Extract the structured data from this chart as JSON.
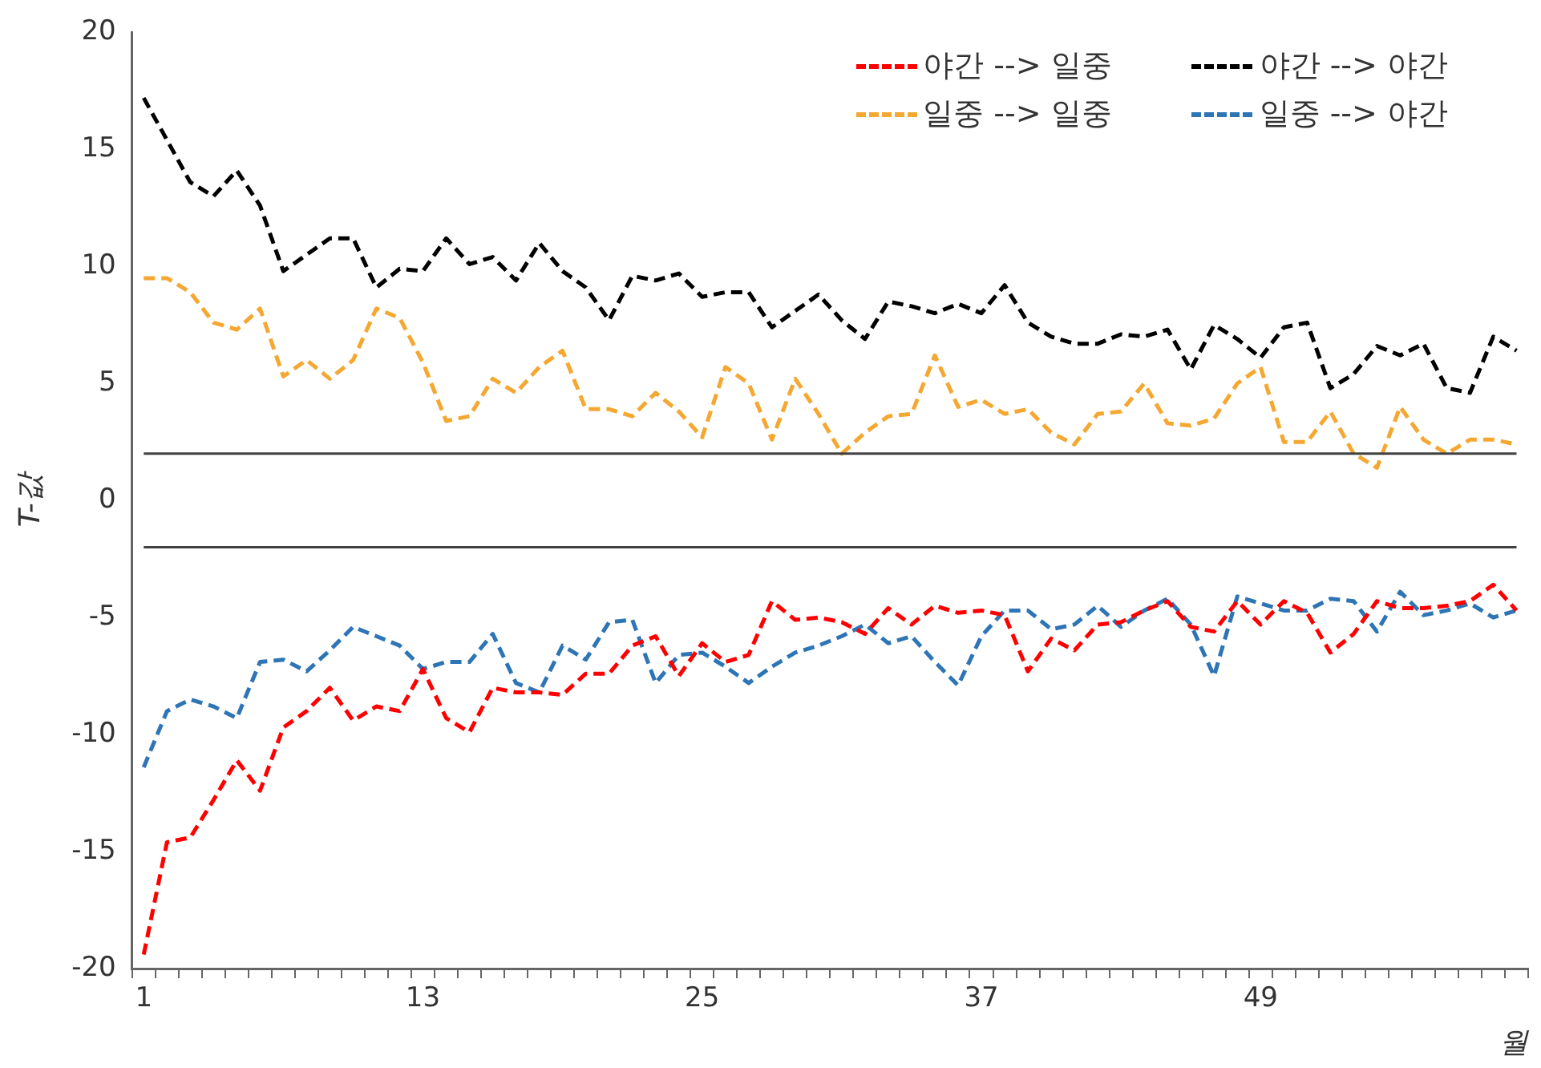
{
  "chart_data": {
    "type": "line",
    "xlabel": "월",
    "ylabel": "T-값",
    "categories": [
      "1",
      null,
      null,
      null,
      null,
      null,
      null,
      null,
      null,
      null,
      null,
      null,
      "13",
      null,
      null,
      null,
      null,
      null,
      null,
      null,
      null,
      null,
      null,
      null,
      "25",
      null,
      null,
      null,
      null,
      null,
      null,
      null,
      null,
      null,
      null,
      null,
      "37",
      null,
      null,
      null,
      null,
      null,
      null,
      null,
      null,
      null,
      null,
      null,
      "49",
      null,
      null,
      null,
      null,
      null,
      null,
      null,
      null,
      null,
      null,
      null
    ],
    "series": [
      {
        "name": "야간 --> 일중",
        "color": "#ff0000",
        "values": [
          -19.4,
          -14.6,
          -14.4,
          -12.8,
          -11.1,
          -12.4,
          -9.7,
          -9.0,
          -8.0,
          -9.4,
          -8.8,
          -9.0,
          -7.2,
          -9.3,
          -9.9,
          -8.0,
          -8.2,
          -8.2,
          -8.3,
          -7.4,
          -7.4,
          -6.2,
          -5.8,
          -7.5,
          -6.1,
          -6.9,
          -6.6,
          -4.3,
          -5.1,
          -5.0,
          -5.2,
          -5.7,
          -4.6,
          -5.3,
          -4.5,
          -4.8,
          -4.7,
          -4.9,
          -7.3,
          -5.9,
          -6.4,
          -5.3,
          -5.2,
          -4.7,
          -4.3,
          -5.4,
          -5.6,
          -4.3,
          -5.3,
          -4.3,
          -4.8,
          -6.5,
          -5.7,
          -4.3,
          -4.6,
          -4.6,
          -4.5,
          -4.3,
          -3.6,
          -4.7
        ]
      },
      {
        "name": "야간 --> 야간",
        "color": "#000000",
        "values": [
          17.2,
          15.4,
          13.6,
          13.0,
          14.1,
          12.6,
          9.8,
          10.5,
          11.2,
          11.2,
          9.1,
          9.9,
          9.8,
          11.2,
          10.1,
          10.4,
          9.4,
          11.0,
          9.8,
          9.1,
          7.7,
          9.6,
          9.4,
          9.7,
          8.7,
          8.9,
          8.9,
          7.4,
          8.1,
          8.8,
          7.7,
          6.9,
          8.5,
          8.3,
          8.0,
          8.4,
          8.0,
          9.2,
          7.6,
          7.0,
          6.7,
          6.7,
          7.1,
          7.0,
          7.3,
          5.6,
          7.5,
          6.9,
          6.1,
          7.4,
          7.6,
          4.8,
          5.4,
          6.6,
          6.2,
          6.7,
          4.8,
          4.6,
          7.0,
          6.4
        ]
      },
      {
        "name": "일중 --> 일중",
        "color": "#f4a832",
        "values": [
          9.5,
          9.5,
          8.9,
          7.6,
          7.3,
          8.2,
          5.3,
          6.0,
          5.2,
          6.0,
          8.2,
          7.8,
          5.9,
          3.4,
          3.6,
          5.2,
          4.6,
          5.7,
          6.4,
          3.9,
          3.9,
          3.6,
          4.6,
          3.8,
          2.7,
          5.7,
          5.0,
          2.6,
          5.2,
          3.7,
          2.0,
          2.9,
          3.6,
          3.7,
          6.2,
          4.0,
          4.3,
          3.7,
          3.9,
          2.9,
          2.4,
          3.7,
          3.8,
          5.0,
          3.3,
          3.2,
          3.5,
          5.0,
          5.7,
          2.5,
          2.5,
          3.8,
          2.0,
          1.4,
          4.0,
          2.6,
          2.0,
          2.6,
          2.6,
          2.4
        ]
      },
      {
        "name": "일중 --> 야간",
        "color": "#2e75b6",
        "values": [
          -11.4,
          -9.0,
          -8.5,
          -8.8,
          -9.3,
          -6.9,
          -6.8,
          -7.3,
          -6.4,
          -5.4,
          -5.8,
          -6.2,
          -7.2,
          -6.9,
          -6.9,
          -5.7,
          -7.8,
          -8.2,
          -6.2,
          -6.8,
          -5.2,
          -5.1,
          -7.8,
          -6.6,
          -6.5,
          -7.1,
          -7.8,
          -7.1,
          -6.5,
          -6.2,
          -5.8,
          -5.3,
          -6.1,
          -5.8,
          -6.9,
          -7.9,
          -5.8,
          -4.7,
          -4.7,
          -5.5,
          -5.3,
          -4.5,
          -5.4,
          -4.7,
          -4.2,
          -5.3,
          -7.5,
          -4.1,
          -4.4,
          -4.7,
          -4.7,
          -4.2,
          -4.3,
          -5.6,
          -3.9,
          -4.9,
          -4.7,
          -4.4,
          -5.0,
          -4.7
        ]
      }
    ],
    "ylim": [
      -20,
      20
    ],
    "yticks": [
      -20,
      -15,
      -10,
      -5,
      0,
      5,
      10,
      15,
      20
    ],
    "ref_lines": [
      {
        "axis": "y",
        "value": 2,
        "color": "#404040",
        "line_style": "solid"
      },
      {
        "axis": "y",
        "value": -2,
        "color": "#404040",
        "line_style": "solid"
      }
    ],
    "grid": false,
    "legend": "top right",
    "marker": "none",
    "line_style": "dashed"
  }
}
